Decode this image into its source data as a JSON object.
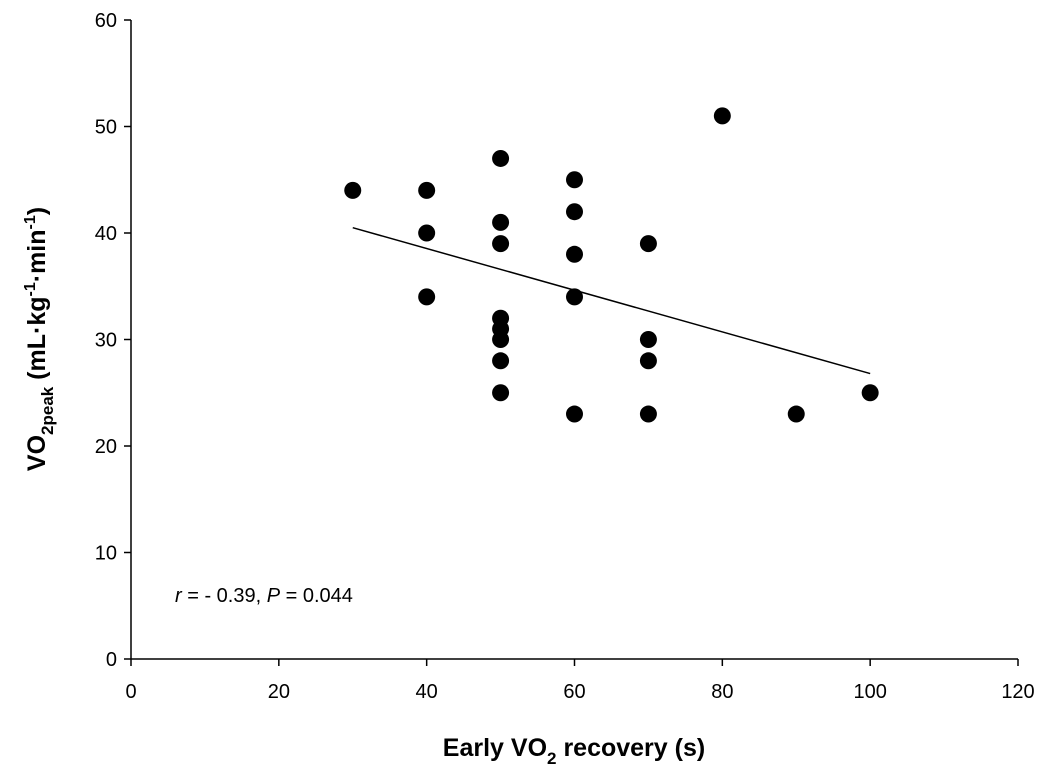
{
  "chart_data": {
    "type": "scatter",
    "xlabel": {
      "main": "Early VO",
      "sub": "2",
      "rest": " recovery (s)"
    },
    "ylabel": {
      "main": "VO",
      "sub": "2peak",
      "rest1": " (mL",
      "dot1": "·",
      "kg": "kg",
      "sup1": "-1",
      "dot2": "·",
      "min": "min",
      "sup2": "-1",
      "close": ")"
    },
    "xlim": [
      0,
      120
    ],
    "ylim": [
      0,
      60
    ],
    "x_ticks": [
      0,
      20,
      40,
      60,
      80,
      100,
      120
    ],
    "y_ticks": [
      0,
      10,
      20,
      30,
      40,
      50,
      60
    ],
    "grid": false,
    "points": [
      {
        "x": 30,
        "y": 44
      },
      {
        "x": 40,
        "y": 44
      },
      {
        "x": 40,
        "y": 40
      },
      {
        "x": 40,
        "y": 34
      },
      {
        "x": 50,
        "y": 47
      },
      {
        "x": 50,
        "y": 41
      },
      {
        "x": 50,
        "y": 39
      },
      {
        "x": 50,
        "y": 32
      },
      {
        "x": 50,
        "y": 31
      },
      {
        "x": 50,
        "y": 30
      },
      {
        "x": 50,
        "y": 28
      },
      {
        "x": 50,
        "y": 25
      },
      {
        "x": 60,
        "y": 45
      },
      {
        "x": 60,
        "y": 42
      },
      {
        "x": 60,
        "y": 38
      },
      {
        "x": 60,
        "y": 34
      },
      {
        "x": 60,
        "y": 23
      },
      {
        "x": 70,
        "y": 39
      },
      {
        "x": 70,
        "y": 30
      },
      {
        "x": 70,
        "y": 28
      },
      {
        "x": 70,
        "y": 23
      },
      {
        "x": 80,
        "y": 51
      },
      {
        "x": 90,
        "y": 23
      },
      {
        "x": 100,
        "y": 25
      }
    ],
    "trendline": {
      "x": [
        30,
        100
      ],
      "y": [
        40.5,
        26.8
      ]
    },
    "annotation": {
      "r_symbol": "r",
      "r_text": " = - 0.39, ",
      "p_symbol": "P",
      "p_text": " = 0.044"
    },
    "colors": {
      "points": "#000000",
      "line": "#000000",
      "axes": "#000000"
    }
  }
}
